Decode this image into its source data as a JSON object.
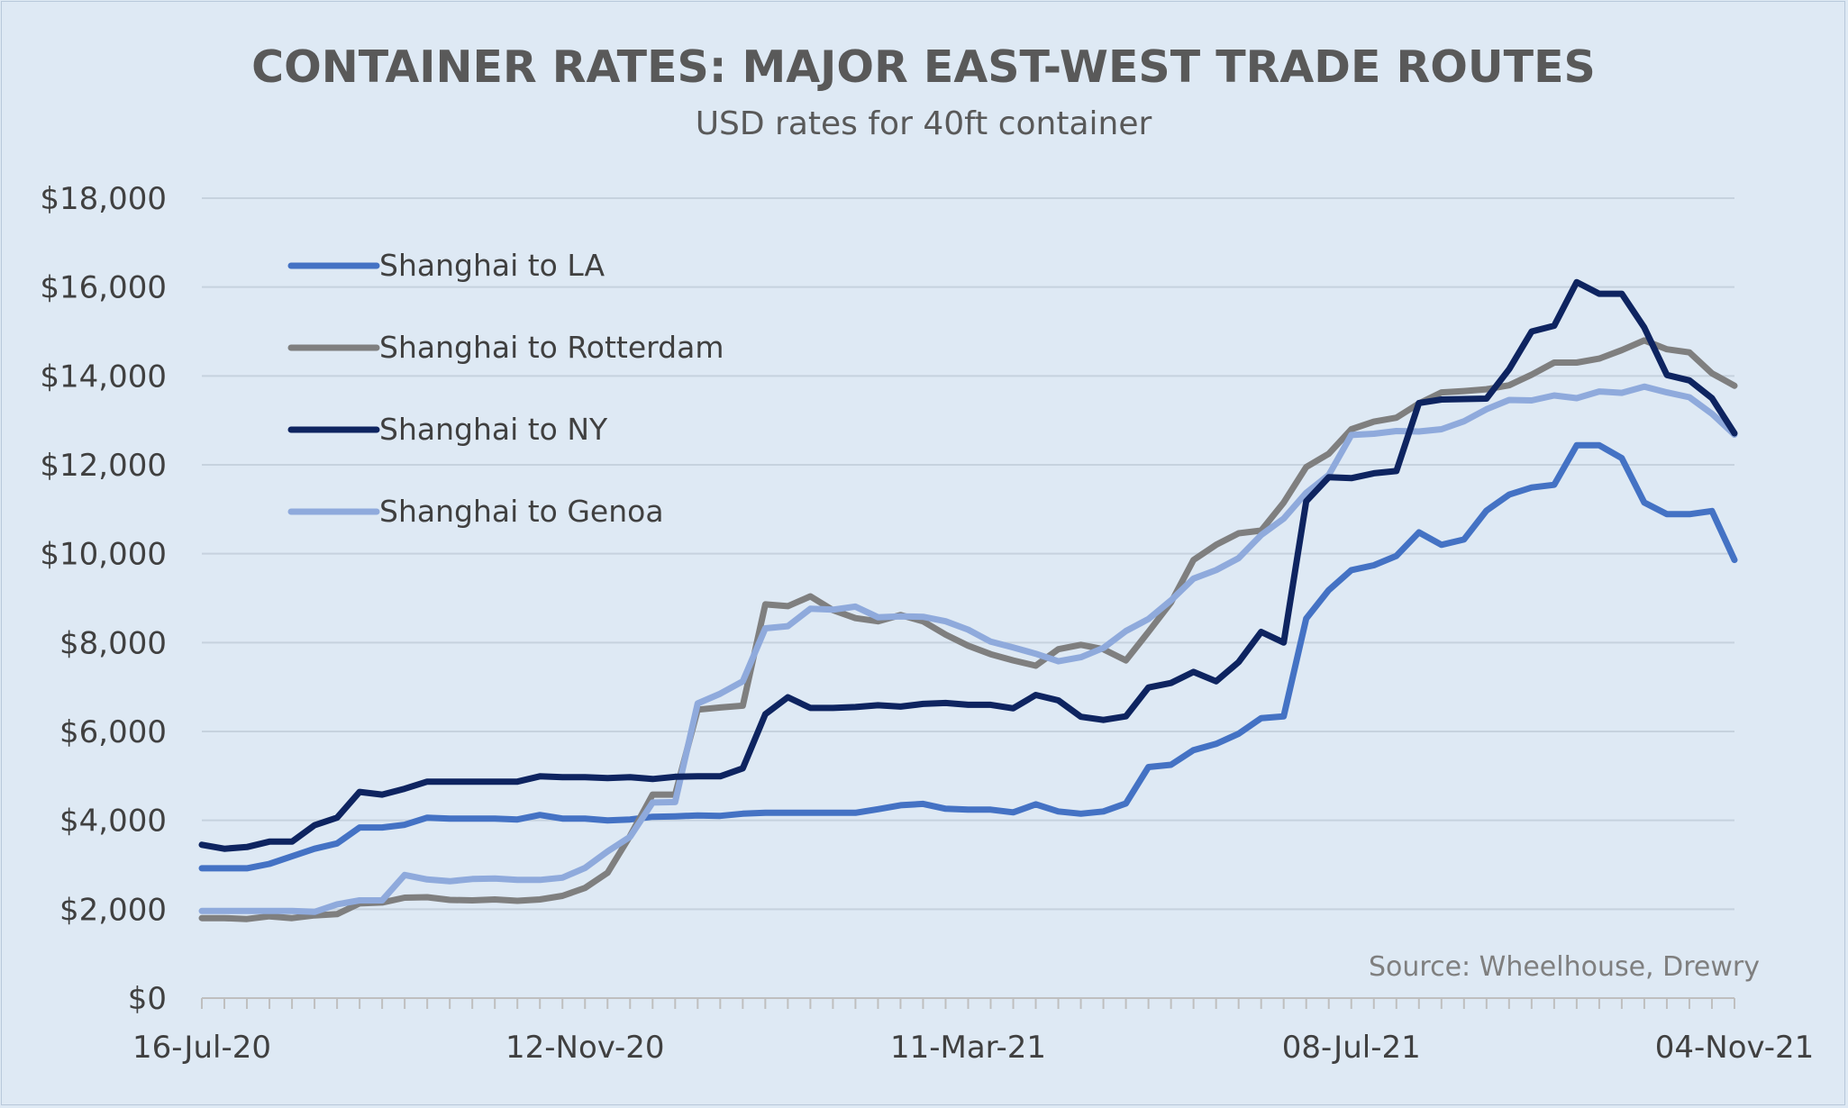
{
  "chart_data": {
    "type": "line",
    "title": "CONTAINER RATES: MAJOR EAST-WEST TRADE ROUTES",
    "subtitle": "USD rates for 40ft container",
    "source": "Source: Wheelhouse, Drewry",
    "ylim": [
      0,
      18000
    ],
    "yticks": [
      {
        "value": 0,
        "label": "$0"
      },
      {
        "value": 2000,
        "label": "$2,000"
      },
      {
        "value": 4000,
        "label": "$4,000"
      },
      {
        "value": 6000,
        "label": "$6,000"
      },
      {
        "value": 8000,
        "label": "$8,000"
      },
      {
        "value": 10000,
        "label": "$10,000"
      },
      {
        "value": 12000,
        "label": "$12,000"
      },
      {
        "value": 14000,
        "label": "$14,000"
      },
      {
        "value": 16000,
        "label": "$16,000"
      },
      {
        "value": 18000,
        "label": "$18,000"
      }
    ],
    "xticks": [
      {
        "week": 0,
        "label": "16-Jul-20"
      },
      {
        "week": 17,
        "label": "12-Nov-20"
      },
      {
        "week": 34,
        "label": "11-Mar-21"
      },
      {
        "week": 51,
        "label": "08-Jul-21"
      },
      {
        "week": 68,
        "label": "04-Nov-21"
      }
    ],
    "weeks": 69,
    "legend_position": "top-left",
    "grid": true,
    "series": [
      {
        "name": "Shanghai to LA",
        "color": "#4472c4",
        "values": [
          2920,
          2920,
          2920,
          3020,
          3190,
          3360,
          3480,
          3840,
          3840,
          3900,
          4060,
          4040,
          4040,
          4040,
          4020,
          4120,
          4040,
          4040,
          4000,
          4020,
          4080,
          4090,
          4110,
          4100,
          4150,
          4170,
          4170,
          4170,
          4170,
          4170,
          4250,
          4340,
          4370,
          4260,
          4240,
          4240,
          4180,
          4360,
          4200,
          4150,
          4200,
          4380,
          5200,
          5250,
          5580,
          5720,
          5950,
          6300,
          6340,
          8540,
          9180,
          9630,
          9740,
          9950,
          10480,
          10200,
          10320,
          10970,
          11330,
          11490,
          11550,
          12440,
          12440,
          12150,
          11150,
          10890,
          10890,
          10960,
          9860
        ]
      },
      {
        "name": "Shanghai to Rotterdam",
        "color": "#7f7f7f",
        "values": [
          1800,
          1800,
          1780,
          1840,
          1800,
          1860,
          1890,
          2130,
          2150,
          2260,
          2270,
          2210,
          2200,
          2220,
          2190,
          2220,
          2300,
          2480,
          2820,
          3650,
          4580,
          4580,
          6490,
          6540,
          6580,
          8860,
          8820,
          9040,
          8730,
          8550,
          8480,
          8620,
          8480,
          8180,
          7930,
          7740,
          7600,
          7480,
          7850,
          7950,
          7850,
          7600,
          8240,
          8900,
          9860,
          10200,
          10460,
          10520,
          11150,
          11950,
          12250,
          12800,
          12970,
          13060,
          13380,
          13630,
          13660,
          13700,
          13790,
          14030,
          14300,
          14300,
          14390,
          14580,
          14800,
          14600,
          14530,
          14060,
          13780
        ]
      },
      {
        "name": "Shanghai to NY",
        "color": "#0e2460",
        "values": [
          3450,
          3360,
          3400,
          3520,
          3520,
          3890,
          4060,
          4640,
          4580,
          4710,
          4870,
          4870,
          4870,
          4870,
          4870,
          4990,
          4970,
          4970,
          4950,
          4970,
          4930,
          4980,
          4990,
          4990,
          5170,
          6390,
          6770,
          6530,
          6530,
          6550,
          6590,
          6560,
          6620,
          6640,
          6600,
          6600,
          6520,
          6820,
          6700,
          6330,
          6260,
          6340,
          6990,
          7090,
          7340,
          7130,
          7560,
          8240,
          8000,
          11180,
          11720,
          11700,
          11810,
          11860,
          13390,
          13470,
          13480,
          13490,
          14150,
          15000,
          15130,
          16110,
          15850,
          15850,
          15090,
          14020,
          13900,
          13500,
          12710
        ]
      },
      {
        "name": "Shanghai to Genoa",
        "color": "#8faadc",
        "values": [
          1960,
          1960,
          1960,
          1960,
          1960,
          1940,
          2110,
          2200,
          2200,
          2770,
          2670,
          2630,
          2680,
          2690,
          2660,
          2660,
          2710,
          2930,
          3300,
          3630,
          4400,
          4410,
          6630,
          6850,
          7130,
          8320,
          8370,
          8760,
          8740,
          8810,
          8570,
          8590,
          8580,
          8480,
          8290,
          8020,
          7890,
          7750,
          7580,
          7670,
          7880,
          8260,
          8530,
          8950,
          9440,
          9630,
          9900,
          10420,
          10790,
          11370,
          11770,
          12670,
          12700,
          12760,
          12750,
          12800,
          12980,
          13250,
          13460,
          13450,
          13560,
          13500,
          13650,
          13620,
          13760,
          13630,
          13520,
          13150,
          12680
        ]
      }
    ]
  }
}
